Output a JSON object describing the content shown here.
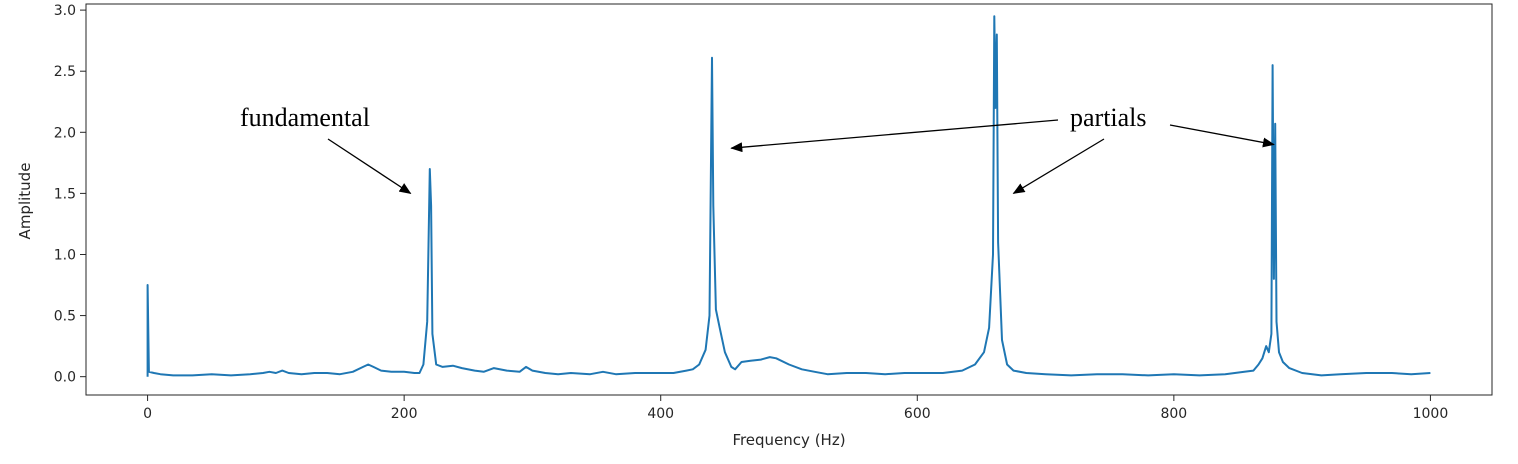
{
  "chart_data": {
    "type": "line",
    "xlabel": "Frequency (Hz)",
    "ylabel": "Amplitude",
    "xlim": [
      -48,
      1048
    ],
    "ylim": [
      -0.15,
      3.05
    ],
    "x_ticks": [
      0,
      200,
      400,
      600,
      800,
      1000
    ],
    "x_tick_labels": [
      "0",
      "200",
      "400",
      "600",
      "800",
      "1000"
    ],
    "y_ticks": [
      0.0,
      0.5,
      1.0,
      1.5,
      2.0,
      2.5,
      3.0
    ],
    "y_tick_labels": [
      "0.0",
      "0.5",
      "1.0",
      "1.5",
      "2.0",
      "2.5",
      "3.0"
    ],
    "grid": false,
    "line_color": "#1f77b4",
    "series": [
      {
        "points": [
          [
            0,
            0.0
          ],
          [
            0,
            0.75
          ],
          [
            1,
            0.04
          ],
          [
            5,
            0.03
          ],
          [
            10,
            0.02
          ],
          [
            20,
            0.01
          ],
          [
            35,
            0.01
          ],
          [
            50,
            0.02
          ],
          [
            65,
            0.01
          ],
          [
            80,
            0.02
          ],
          [
            90,
            0.03
          ],
          [
            95,
            0.04
          ],
          [
            100,
            0.03
          ],
          [
            105,
            0.05
          ],
          [
            110,
            0.03
          ],
          [
            120,
            0.02
          ],
          [
            130,
            0.03
          ],
          [
            140,
            0.03
          ],
          [
            150,
            0.02
          ],
          [
            160,
            0.04
          ],
          [
            168,
            0.08
          ],
          [
            172,
            0.1
          ],
          [
            176,
            0.08
          ],
          [
            182,
            0.05
          ],
          [
            190,
            0.04
          ],
          [
            200,
            0.04
          ],
          [
            208,
            0.03
          ],
          [
            212,
            0.03
          ],
          [
            215,
            0.1
          ],
          [
            218,
            0.45
          ],
          [
            220,
            1.7
          ],
          [
            221,
            1.4
          ],
          [
            222,
            0.35
          ],
          [
            225,
            0.1
          ],
          [
            230,
            0.08
          ],
          [
            238,
            0.09
          ],
          [
            245,
            0.07
          ],
          [
            255,
            0.05
          ],
          [
            262,
            0.04
          ],
          [
            270,
            0.07
          ],
          [
            280,
            0.05
          ],
          [
            290,
            0.04
          ],
          [
            295,
            0.08
          ],
          [
            300,
            0.05
          ],
          [
            310,
            0.03
          ],
          [
            320,
            0.02
          ],
          [
            330,
            0.03
          ],
          [
            345,
            0.02
          ],
          [
            355,
            0.04
          ],
          [
            365,
            0.02
          ],
          [
            380,
            0.03
          ],
          [
            395,
            0.03
          ],
          [
            410,
            0.03
          ],
          [
            420,
            0.05
          ],
          [
            425,
            0.06
          ],
          [
            430,
            0.1
          ],
          [
            435,
            0.22
          ],
          [
            438,
            0.5
          ],
          [
            440,
            2.61
          ],
          [
            441,
            1.4
          ],
          [
            443,
            0.55
          ],
          [
            446,
            0.4
          ],
          [
            450,
            0.2
          ],
          [
            455,
            0.08
          ],
          [
            458,
            0.06
          ],
          [
            463,
            0.12
          ],
          [
            470,
            0.13
          ],
          [
            478,
            0.14
          ],
          [
            485,
            0.16
          ],
          [
            490,
            0.15
          ],
          [
            500,
            0.1
          ],
          [
            510,
            0.06
          ],
          [
            520,
            0.04
          ],
          [
            530,
            0.02
          ],
          [
            545,
            0.03
          ],
          [
            560,
            0.03
          ],
          [
            575,
            0.02
          ],
          [
            590,
            0.03
          ],
          [
            605,
            0.03
          ],
          [
            620,
            0.03
          ],
          [
            635,
            0.05
          ],
          [
            645,
            0.1
          ],
          [
            652,
            0.2
          ],
          [
            656,
            0.4
          ],
          [
            659,
            1.0
          ],
          [
            660,
            2.95
          ],
          [
            661,
            2.2
          ],
          [
            662,
            2.8
          ],
          [
            663,
            1.1
          ],
          [
            666,
            0.3
          ],
          [
            670,
            0.1
          ],
          [
            675,
            0.05
          ],
          [
            685,
            0.03
          ],
          [
            700,
            0.02
          ],
          [
            720,
            0.01
          ],
          [
            740,
            0.02
          ],
          [
            760,
            0.02
          ],
          [
            780,
            0.01
          ],
          [
            800,
            0.02
          ],
          [
            820,
            0.01
          ],
          [
            840,
            0.02
          ],
          [
            855,
            0.04
          ],
          [
            862,
            0.05
          ],
          [
            866,
            0.1
          ],
          [
            869,
            0.15
          ],
          [
            872,
            0.25
          ],
          [
            874,
            0.2
          ],
          [
            876,
            0.35
          ],
          [
            877,
            2.55
          ],
          [
            878,
            0.8
          ],
          [
            879,
            2.07
          ],
          [
            880,
            0.45
          ],
          [
            882,
            0.2
          ],
          [
            885,
            0.12
          ],
          [
            890,
            0.07
          ],
          [
            900,
            0.03
          ],
          [
            915,
            0.01
          ],
          [
            930,
            0.02
          ],
          [
            950,
            0.03
          ],
          [
            970,
            0.03
          ],
          [
            985,
            0.02
          ],
          [
            1000,
            0.03
          ]
        ]
      }
    ],
    "annotations": [
      {
        "text": "fundamental",
        "points_to": [
          [
            205,
            1.5
          ]
        ]
      },
      {
        "text": "partials",
        "points_to": [
          [
            455,
            1.87
          ],
          [
            675,
            1.5
          ],
          [
            878,
            1.9
          ]
        ]
      }
    ]
  }
}
